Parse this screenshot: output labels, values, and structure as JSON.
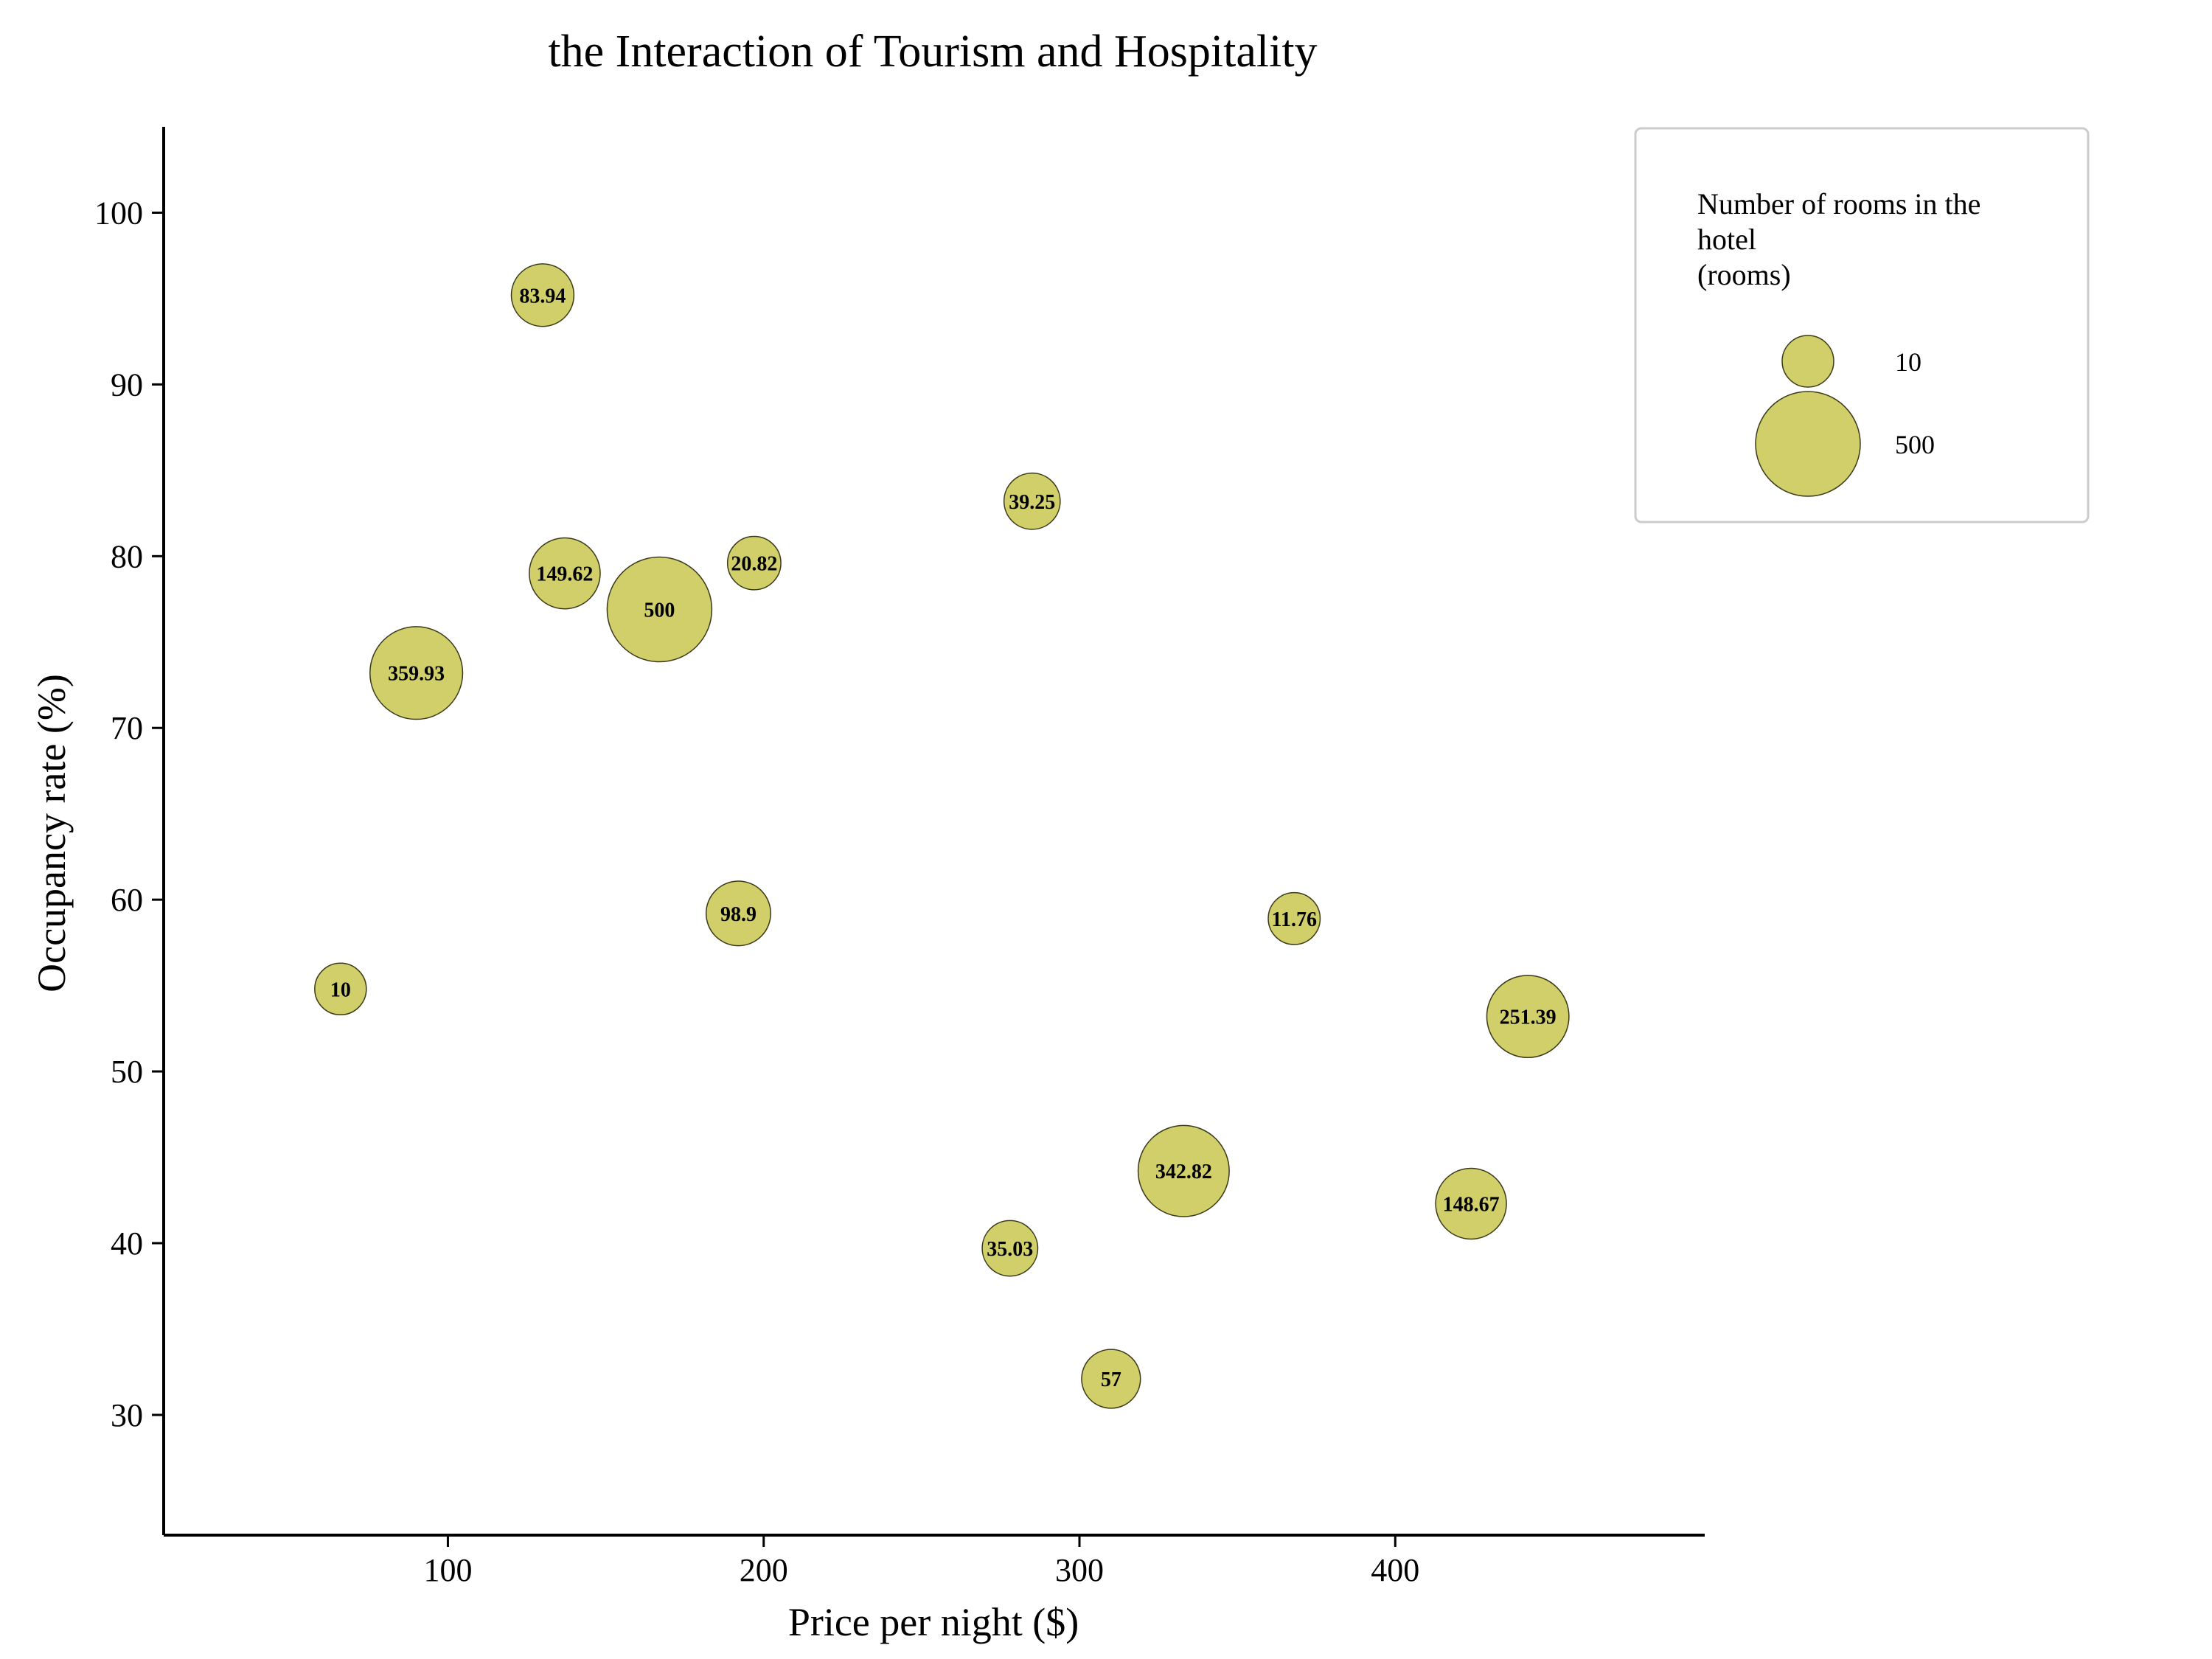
{
  "chart_data": {
    "type": "scatter",
    "title": "the Interaction of Tourism and Hospitality",
    "xlabel": "Price per night ($)",
    "ylabel": "Occupancy rate (%)",
    "xlim": [
      10,
      498
    ],
    "ylim": [
      23,
      105
    ],
    "xticks": [
      100,
      200,
      300,
      400
    ],
    "yticks": [
      30,
      40,
      50,
      60,
      70,
      80,
      90,
      100
    ],
    "grid": false,
    "legend_position": "top-right",
    "colors": {
      "bubble_fill": "#d1cf6a",
      "bubble_edge": "#3a3a1a",
      "axis": "#000000",
      "legend_border": "#cccccc"
    },
    "size_legend": {
      "title_lines": [
        "Number of rooms in the",
        "hotel",
        "(rooms)"
      ],
      "entries": [
        {
          "label": "10",
          "value": 10
        },
        {
          "label": "500",
          "value": 500
        }
      ]
    },
    "points": [
      {
        "x": 66,
        "y": 54.8,
        "size": 10,
        "label": "10"
      },
      {
        "x": 90,
        "y": 73.2,
        "size": 359.93,
        "label": "359.93"
      },
      {
        "x": 130,
        "y": 95.2,
        "size": 83.94,
        "label": "83.94"
      },
      {
        "x": 137,
        "y": 79.0,
        "size": 149.62,
        "label": "149.62"
      },
      {
        "x": 167,
        "y": 76.9,
        "size": 500,
        "label": "500"
      },
      {
        "x": 192,
        "y": 59.2,
        "size": 98.9,
        "label": "98.9"
      },
      {
        "x": 197,
        "y": 79.6,
        "size": 20.82,
        "label": "20.82"
      },
      {
        "x": 278,
        "y": 39.7,
        "size": 35.03,
        "label": "35.03"
      },
      {
        "x": 285,
        "y": 83.2,
        "size": 39.25,
        "label": "39.25"
      },
      {
        "x": 310,
        "y": 32.1,
        "size": 57,
        "label": "57"
      },
      {
        "x": 333,
        "y": 44.2,
        "size": 342.82,
        "label": "342.82"
      },
      {
        "x": 368,
        "y": 58.9,
        "size": 11.76,
        "label": "11.76"
      },
      {
        "x": 424,
        "y": 42.3,
        "size": 148.67,
        "label": "148.67"
      },
      {
        "x": 442,
        "y": 53.2,
        "size": 251.39,
        "label": "251.39"
      }
    ]
  }
}
